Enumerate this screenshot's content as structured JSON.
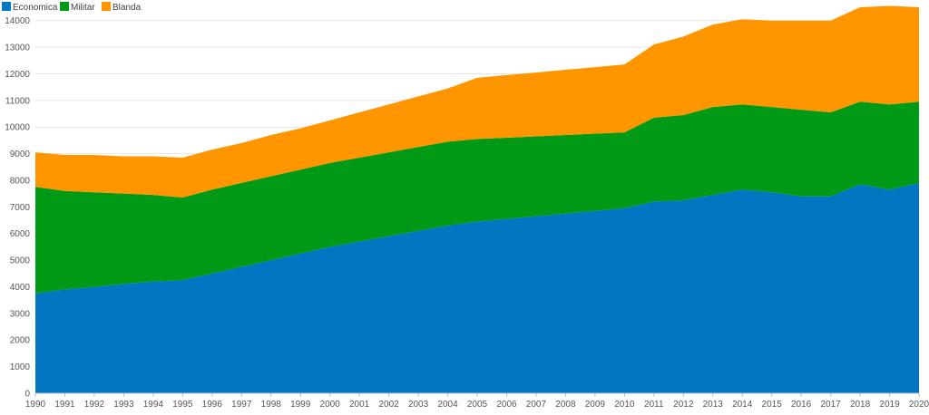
{
  "chart_data": {
    "type": "area",
    "stacked": true,
    "title": "",
    "xlabel": "",
    "ylabel": "",
    "ylim": [
      0,
      14500
    ],
    "yticks": [
      0,
      1000,
      2000,
      3000,
      4000,
      5000,
      6000,
      7000,
      8000,
      9000,
      10000,
      11000,
      12000,
      13000,
      14000
    ],
    "grid": true,
    "legend_position": "top-left",
    "x": [
      1990,
      1991,
      1992,
      1993,
      1994,
      1995,
      1996,
      1997,
      1998,
      1999,
      2000,
      2001,
      2002,
      2003,
      2004,
      2005,
      2006,
      2007,
      2008,
      2009,
      2010,
      2011,
      2012,
      2013,
      2014,
      2015,
      2016,
      2017,
      2018,
      2019,
      2020
    ],
    "series": [
      {
        "name": "Economica",
        "color": "#0077c0",
        "values": [
          3750,
          3900,
          4000,
          4100,
          4200,
          4250,
          4500,
          4750,
          5000,
          5250,
          5500,
          5700,
          5900,
          6100,
          6300,
          6450,
          6550,
          6650,
          6750,
          6850,
          6950,
          7200,
          7250,
          7450,
          7650,
          7550,
          7400,
          7400,
          7850,
          7650,
          7900
        ]
      },
      {
        "name": "Militar",
        "color": "#009a17",
        "values": [
          4000,
          3700,
          3550,
          3400,
          3250,
          3100,
          3150,
          3150,
          3150,
          3150,
          3150,
          3150,
          3150,
          3150,
          3150,
          3100,
          3050,
          3000,
          2950,
          2900,
          2850,
          3150,
          3200,
          3300,
          3200,
          3200,
          3250,
          3150,
          3100,
          3200,
          3050
        ]
      },
      {
        "name": "Blanda",
        "color": "#ff9600",
        "values": [
          1300,
          1350,
          1400,
          1400,
          1450,
          1500,
          1500,
          1500,
          1550,
          1550,
          1600,
          1700,
          1800,
          1900,
          2000,
          2300,
          2350,
          2400,
          2450,
          2500,
          2550,
          2750,
          2950,
          3100,
          3200,
          3250,
          3350,
          3450,
          3550,
          3700,
          3550
        ]
      }
    ]
  }
}
